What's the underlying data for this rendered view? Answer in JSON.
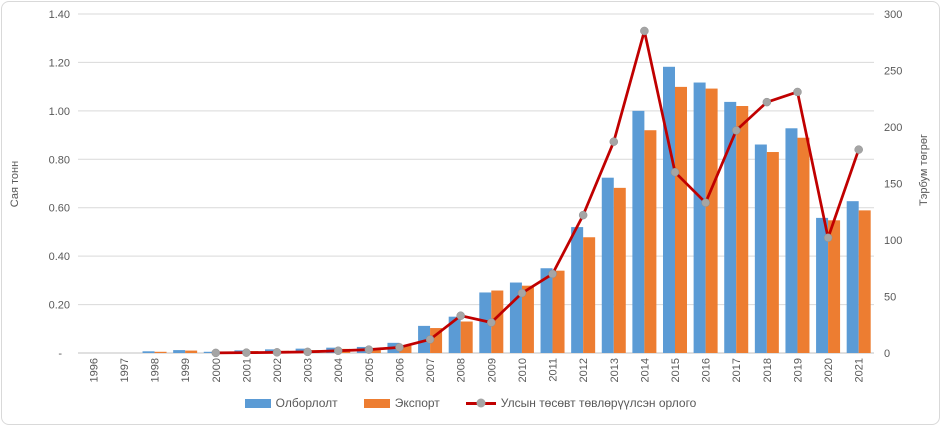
{
  "chart_data": {
    "type": "combo-bar-line",
    "title": "",
    "categories": [
      "1996",
      "1997",
      "1998",
      "1999",
      "2000",
      "2001",
      "2002",
      "2003",
      "2004",
      "2005",
      "2006",
      "2007",
      "2008",
      "2009",
      "2010",
      "2011",
      "2012",
      "2013",
      "2014",
      "2015",
      "2016",
      "2017",
      "2018",
      "2019",
      "2020",
      "2021"
    ],
    "series": [
      {
        "key": "production",
        "name": "Олборлолт",
        "type": "bar",
        "axis": "left",
        "color": "#5B9BD5",
        "values": [
          0,
          0,
          0.007,
          0.012,
          0.005,
          0.011,
          0.015,
          0.018,
          0.022,
          0.025,
          0.042,
          0.112,
          0.15,
          0.25,
          0.291,
          0.35,
          0.52,
          0.724,
          1.0,
          1.182,
          1.117,
          1.037,
          0.861,
          0.928,
          0.558,
          0.627
        ]
      },
      {
        "key": "export",
        "name": "Экспорт",
        "type": "bar",
        "axis": "left",
        "color": "#ED7D31",
        "values": [
          0,
          0,
          0.005,
          0.01,
          0.004,
          0.008,
          0.009,
          0.012,
          0.017,
          0.018,
          0.03,
          0.103,
          0.13,
          0.258,
          0.278,
          0.34,
          0.478,
          0.682,
          0.92,
          1.099,
          1.092,
          1.02,
          0.83,
          0.889,
          0.548,
          0.589
        ]
      },
      {
        "key": "budget-revenue",
        "name": "Улсын төсөвт төвлөрүүлсэн орлого",
        "type": "line",
        "axis": "right",
        "color": "#C00000",
        "marker_color": "#A5A5A5",
        "values": [
          null,
          null,
          null,
          null,
          0.1,
          0.3,
          0.6,
          1,
          2,
          3,
          5,
          12,
          33,
          27,
          53,
          70,
          122,
          187,
          285,
          160,
          133,
          197,
          222,
          231,
          102,
          180
        ]
      }
    ],
    "left_axis": {
      "title": "Сая тонн",
      "min": 0,
      "max": 1.4,
      "step": 0.2,
      "tick_labels": [
        "-",
        "0.20",
        "0.40",
        "0.60",
        "0.80",
        "1.00",
        "1.20",
        "1.40"
      ]
    },
    "right_axis": {
      "title": "Тэрбум төгрөг",
      "min": 0,
      "max": 300,
      "step": 50,
      "tick_labels": [
        "0",
        "50",
        "100",
        "150",
        "200",
        "250",
        "300"
      ]
    },
    "grid": true,
    "legend_position": "bottom",
    "colors": {
      "grid": "#D9D9D9",
      "axis_line": "#C0C0C0",
      "text": "#595959",
      "background": "#FFFFFF",
      "border": "#D9D9D9"
    }
  }
}
